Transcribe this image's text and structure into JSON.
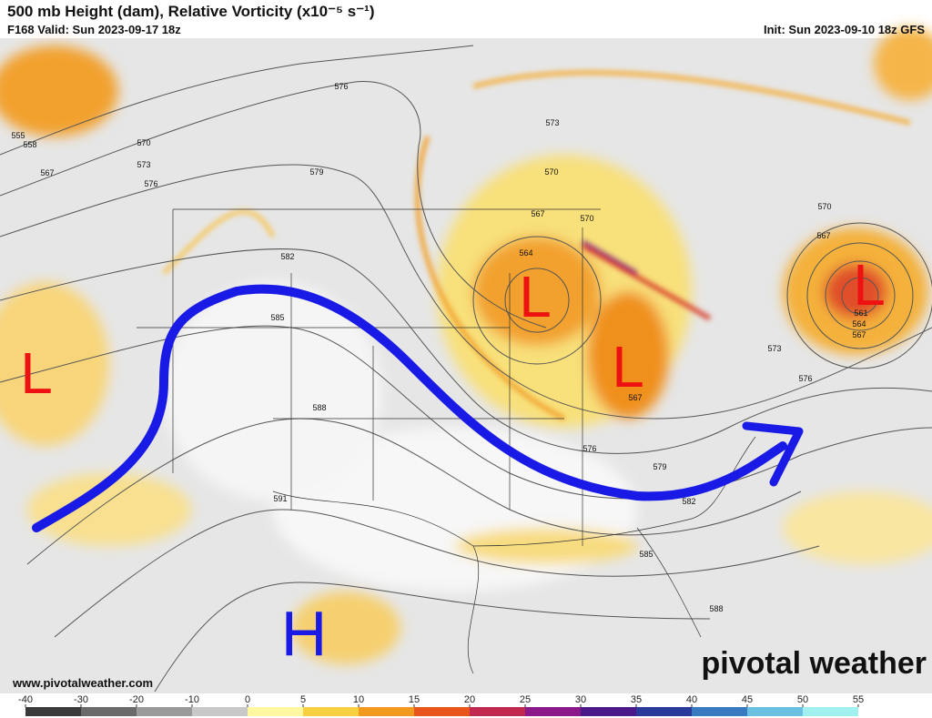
{
  "header": {
    "title": "500 mb Height (dam), Relative Vorticity (x10⁻⁵ s⁻¹)",
    "valid": "F168 Valid: Sun 2023-09-17 18z",
    "init": "Init: Sun 2023-09-10 18z GFS"
  },
  "map": {
    "contour_labels": [
      "555",
      "558",
      "567",
      "570",
      "573",
      "576",
      "576",
      "579",
      "582",
      "585",
      "588",
      "591",
      "573",
      "570",
      "567",
      "564",
      "570",
      "567",
      "576",
      "579",
      "582",
      "585",
      "588",
      "573",
      "576",
      "570",
      "567",
      "561",
      "564",
      "567"
    ],
    "lows": [
      "L",
      "L",
      "L",
      "L"
    ],
    "highs": [
      "H"
    ],
    "website": "www.pivotalweather.com",
    "logo": "pivotal weather"
  },
  "colorbar": {
    "ticks": [
      -40,
      -30,
      -20,
      -10,
      0,
      5,
      10,
      15,
      20,
      25,
      30,
      35,
      40,
      45,
      50,
      55
    ]
  }
}
